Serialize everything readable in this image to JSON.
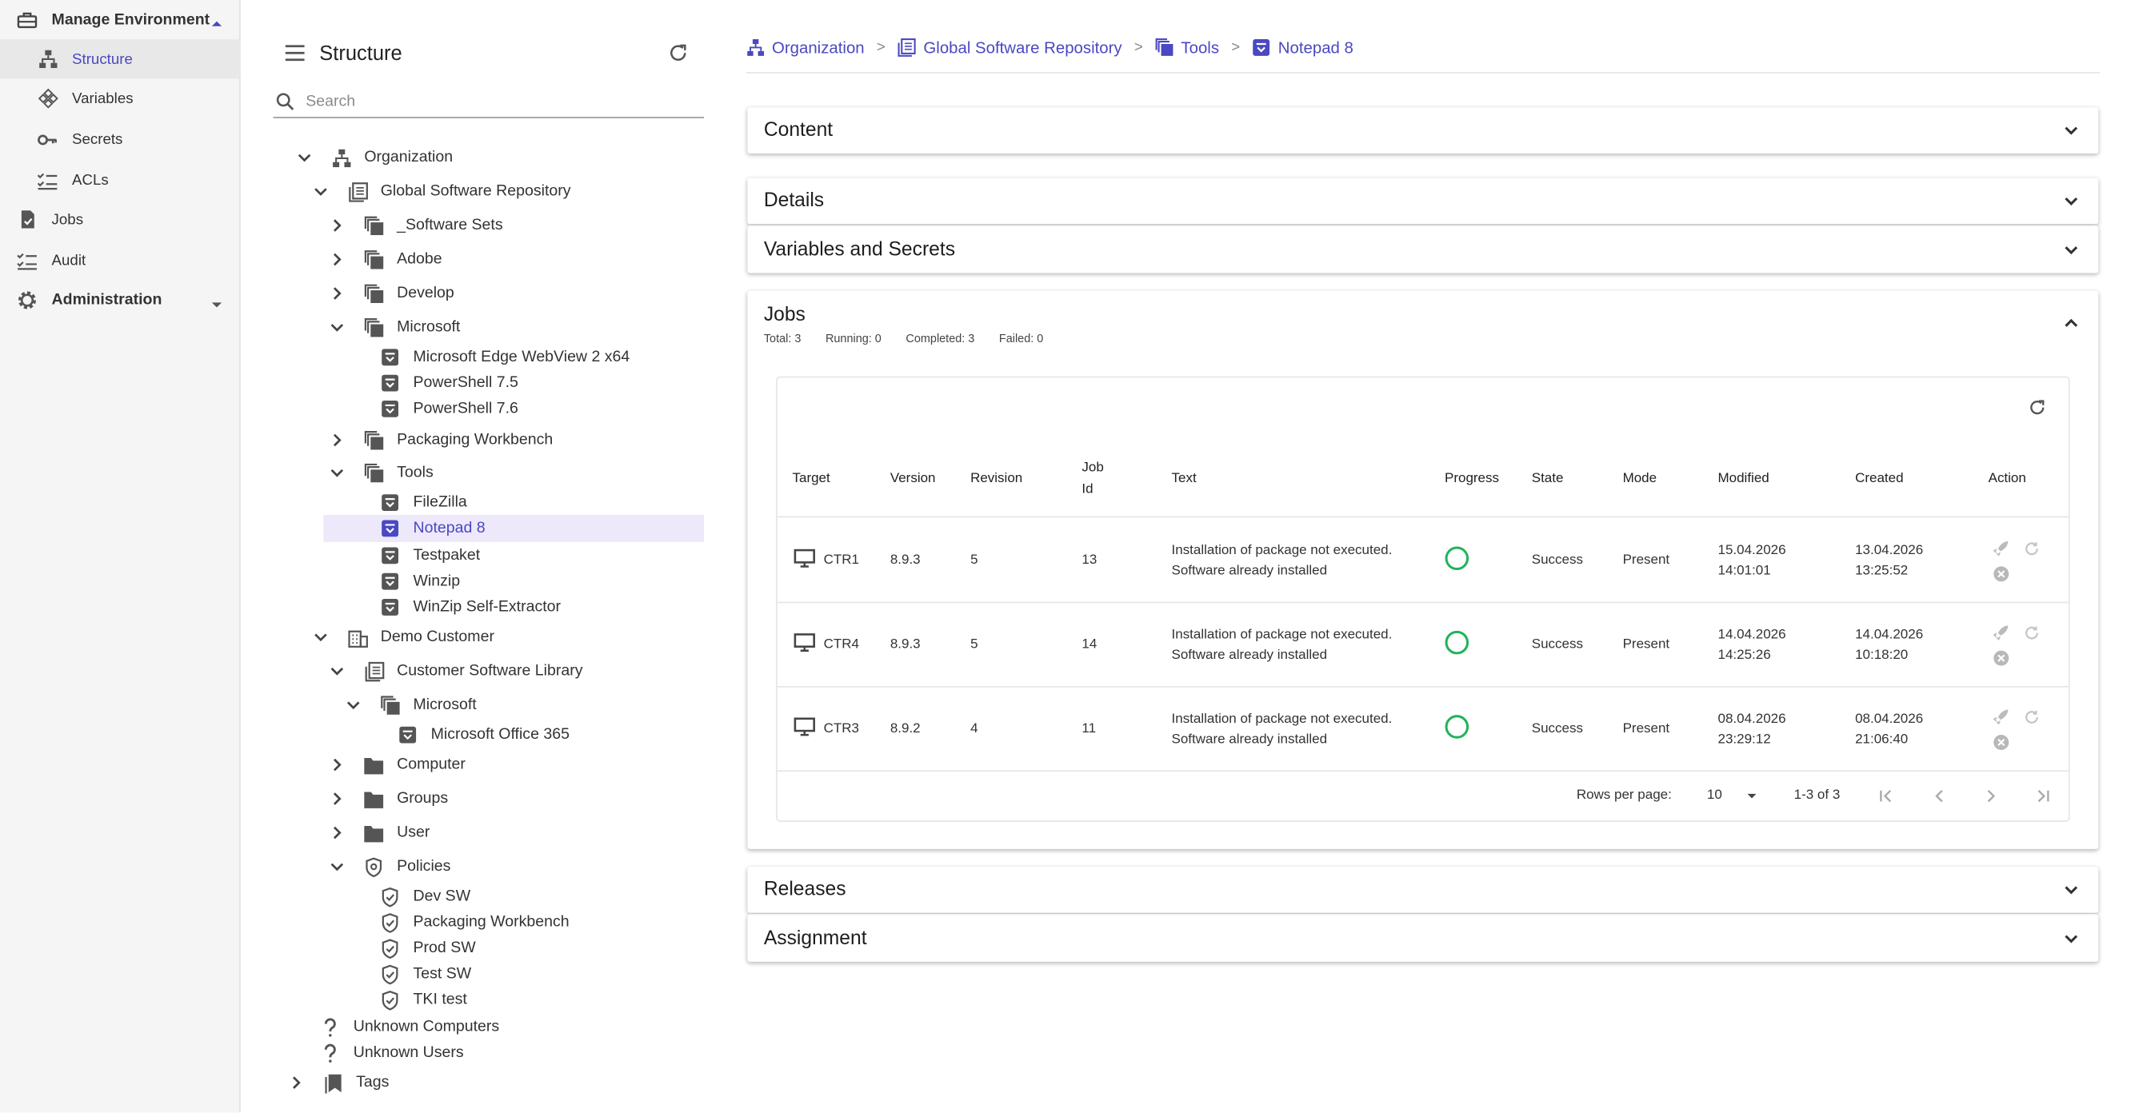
{
  "nav": {
    "manage_environment": "Manage Environment",
    "structure": "Structure",
    "variables": "Variables",
    "secrets": "Secrets",
    "acls": "ACLs",
    "jobs": "Jobs",
    "audit": "Audit",
    "administration": "Administration"
  },
  "tree": {
    "title": "Structure",
    "search_placeholder": "Search",
    "organization": "Organization",
    "global_software_repository": "Global Software Repository",
    "software_sets": "_Software Sets",
    "adobe": "Adobe",
    "develop": "Develop",
    "microsoft": "Microsoft",
    "edge_webview": "Microsoft Edge WebView 2 x64",
    "powershell_75": "PowerShell 7.5",
    "powershell_76": "PowerShell 7.6",
    "packaging_workbench": "Packaging Workbench",
    "tools": "Tools",
    "filezilla": "FileZilla",
    "notepad8": "Notepad 8",
    "testpaket": "Testpaket",
    "winzip": "Winzip",
    "winzip_self_extractor": "WinZip Self-Extractor",
    "demo_customer": "Demo Customer",
    "customer_software_library": "Customer Software Library",
    "microsoft2": "Microsoft",
    "office365": "Microsoft Office 365",
    "computer": "Computer",
    "groups": "Groups",
    "user": "User",
    "policies": "Policies",
    "dev_sw": "Dev SW",
    "packaging_workbench2": "Packaging Workbench",
    "prod_sw": "Prod SW",
    "test_sw": "Test SW",
    "tki_test": "TKI test",
    "unknown_computers": "Unknown Computers",
    "unknown_users": "Unknown Users",
    "tags": "Tags"
  },
  "breadcrumb": {
    "organization": "Organization",
    "repository": "Global Software Repository",
    "tools": "Tools",
    "item": "Notepad 8",
    "separator": ">"
  },
  "sections": {
    "content": "Content",
    "details": "Details",
    "variables_secrets": "Variables and Secrets",
    "jobs": "Jobs",
    "releases": "Releases",
    "assignment": "Assignment"
  },
  "jobs_summary": {
    "total": "Total: 3",
    "running": "Running: 0",
    "completed": "Completed: 3",
    "failed": "Failed: 0"
  },
  "table": {
    "headers": {
      "target": "Target",
      "version": "Version",
      "revision": "Revision",
      "job_id_1": "Job",
      "job_id_2": "Id",
      "text": "Text",
      "progress": "Progress",
      "state": "State",
      "mode": "Mode",
      "modified": "Modified",
      "created": "Created",
      "action": "Action"
    },
    "rows": [
      {
        "target": "CTR1",
        "version": "8.9.3",
        "revision": "5",
        "job_id": "13",
        "text1": "Installation of package not executed.",
        "text2": "Software already installed",
        "state": "Success",
        "mode": "Present",
        "modified_date": "15.04.2026",
        "modified_time": "14:01:01",
        "created_date": "13.04.2026",
        "created_time": "13:25:52"
      },
      {
        "target": "CTR4",
        "version": "8.9.3",
        "revision": "5",
        "job_id": "14",
        "text1": "Installation of package not executed.",
        "text2": "Software already installed",
        "state": "Success",
        "mode": "Present",
        "modified_date": "14.04.2026",
        "modified_time": "14:25:26",
        "created_date": "14.04.2026",
        "created_time": "10:18:20"
      },
      {
        "target": "CTR3",
        "version": "8.9.2",
        "revision": "4",
        "job_id": "11",
        "text1": "Installation of package not executed.",
        "text2": "Software already installed",
        "state": "Success",
        "mode": "Present",
        "modified_date": "08.04.2026",
        "modified_time": "23:29:12",
        "created_date": "08.04.2026",
        "created_time": "21:06:40"
      }
    ],
    "rows_per_page_label": "Rows per page:",
    "rows_per_page_value": "10",
    "range": "1-3 of 3"
  },
  "colors": {
    "accent": "#4a48c2",
    "success": "#22b35a",
    "selected_bg": "#ede9fb"
  }
}
